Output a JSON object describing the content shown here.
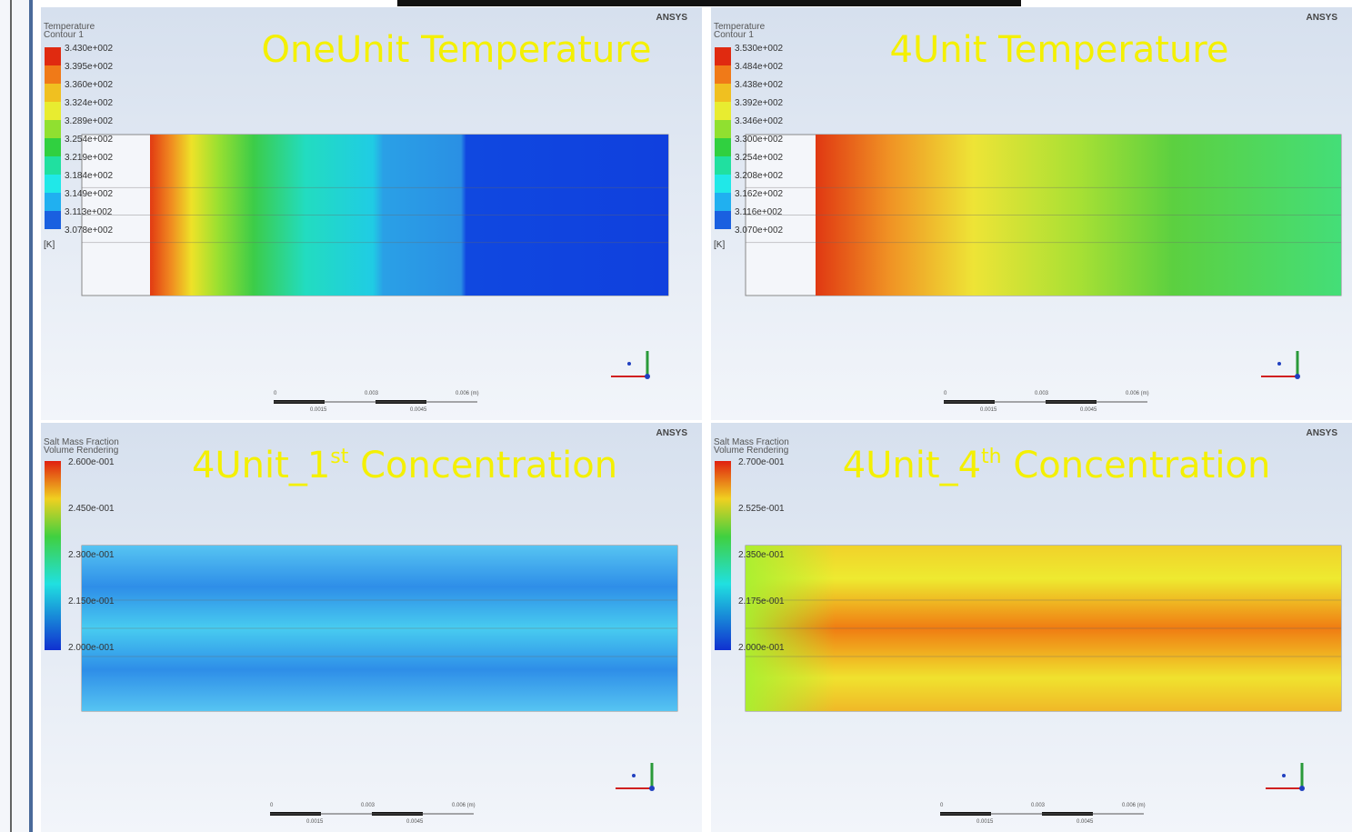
{
  "panels": [
    {
      "title": {
        "text": "OneUnit Temperature"
      },
      "brand": "ANSYS",
      "legend": {
        "title": "Temperature",
        "subtitle": "Contour 1",
        "unit": "[K]",
        "labels": [
          "3.430e+002",
          "3.395e+002",
          "3.360e+002",
          "3.324e+002",
          "3.289e+002",
          "3.254e+002",
          "3.219e+002",
          "3.184e+002",
          "3.149e+002",
          "3.113e+002",
          "3.078e+002"
        ]
      },
      "scale": [
        "0",
        "0.003",
        "0.006 (m)",
        "0.0015",
        "0.0045"
      ]
    },
    {
      "title": {
        "text": "4Unit Temperature"
      },
      "brand": "ANSYS",
      "legend": {
        "title": "Temperature",
        "subtitle": "Contour 1",
        "unit": "[K]",
        "labels": [
          "3.530e+002",
          "3.484e+002",
          "3.438e+002",
          "3.392e+002",
          "3.346e+002",
          "3.300e+002",
          "3.254e+002",
          "3.208e+002",
          "3.162e+002",
          "3.116e+002",
          "3.070e+002"
        ]
      },
      "scale": [
        "0",
        "0.003",
        "0.006 (m)",
        "0.0015",
        "0.0045"
      ]
    },
    {
      "title": {
        "text": "4Unit_1",
        "sup": "st",
        "tail": " Concentration"
      },
      "brand": "ANSYS",
      "legend": {
        "title": "Salt Mass Fraction",
        "subtitle": "Volume Rendering",
        "labels": [
          "2.600e-001",
          "2.450e-001",
          "2.300e-001",
          "2.150e-001",
          "2.000e-001"
        ]
      },
      "scale": [
        "0",
        "0.003",
        "0.006 (m)",
        "0.0015",
        "0.0045"
      ]
    },
    {
      "title": {
        "text": "4Unit_4",
        "sup": "th",
        "tail": " Concentration"
      },
      "brand": "ANSYS",
      "legend": {
        "title": "Salt Mass Fraction",
        "subtitle": "Volume Rendering",
        "labels": [
          "2.700e-001",
          "2.525e-001",
          "2.350e-001",
          "2.175e-001",
          "2.000e-001"
        ]
      },
      "scale": [
        "0",
        "0.003",
        "0.006 (m)",
        "0.0015",
        "0.0045"
      ]
    }
  ]
}
